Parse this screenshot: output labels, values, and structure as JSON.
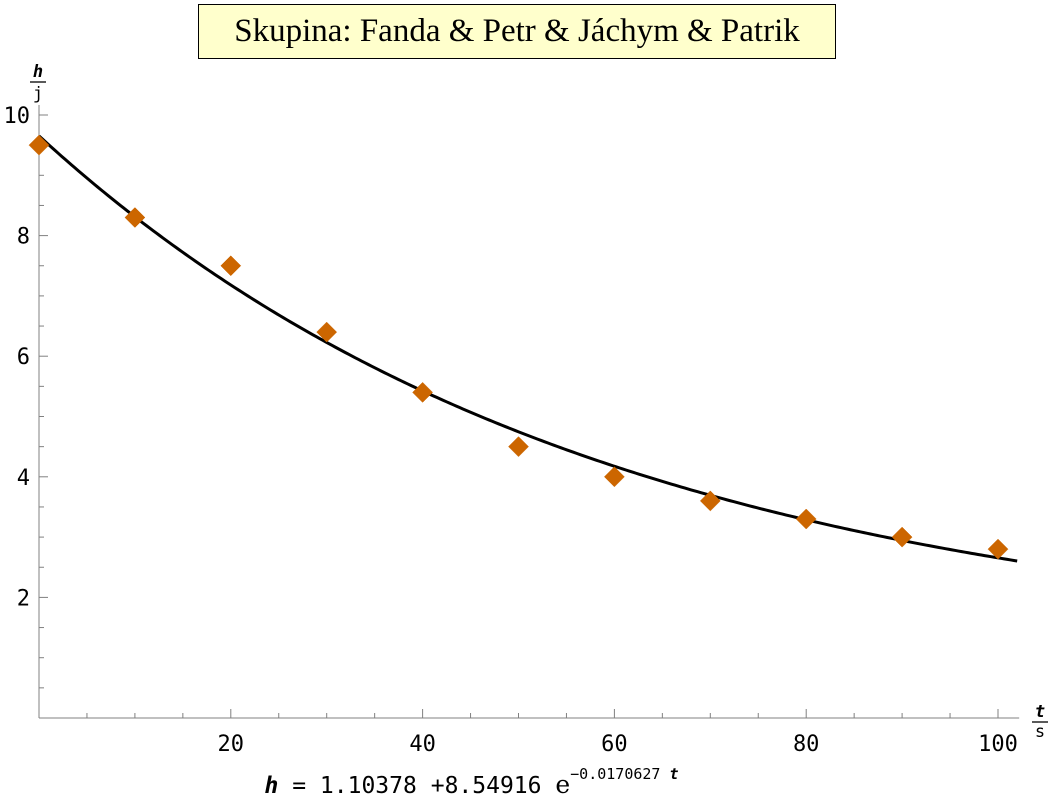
{
  "title": "Skupina: Fanda & Petr & Jáchym & Patrik",
  "chart_data": {
    "type": "scatter",
    "x_axis": {
      "unit_numerator": "t",
      "unit_denominator": "s",
      "range": [
        0,
        102
      ],
      "ticks": [
        20,
        40,
        60,
        80,
        100
      ],
      "minor_step": 5
    },
    "y_axis": {
      "unit_numerator": "h",
      "unit_denominator": "j",
      "range": [
        0,
        10
      ],
      "ticks": [
        2,
        4,
        6,
        8,
        10
      ],
      "minor_step": 0.5
    },
    "grid": false,
    "series": [
      {
        "kind": "points",
        "marker": "diamond",
        "color": "#cc6600",
        "x": [
          0,
          10,
          20,
          30,
          40,
          50,
          60,
          70,
          80,
          90,
          100
        ],
        "y": [
          9.5,
          8.3,
          7.5,
          6.4,
          5.4,
          4.5,
          4.0,
          3.6,
          3.3,
          3.0,
          2.8
        ]
      },
      {
        "kind": "fit_curve",
        "color": "#000000",
        "a": 1.10378,
        "b": 8.54916,
        "k": -0.0170627,
        "x_range": [
          0,
          102
        ]
      }
    ],
    "fit_equation": {
      "lhs": "h",
      "equals": "=",
      "constant": "1.10378",
      "plus": "+",
      "coefficient": "8.54916",
      "base": "e",
      "exponent": "−0.0170627",
      "variable": "t"
    }
  }
}
